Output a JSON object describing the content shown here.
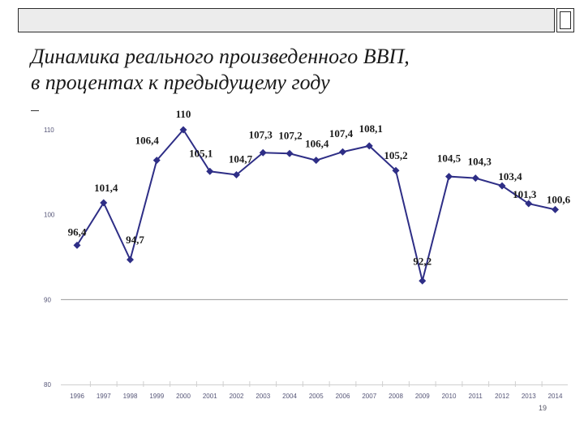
{
  "slide": {
    "title_line1": "Динамика реального произведенного ВВП,",
    "title_line2": "в процентах к предыдущему году",
    "page_number": "19"
  },
  "colors": {
    "series": "#2e2e86",
    "text": "#1a1a1a",
    "axis_tick": "#555577",
    "grid": "#9a9a9a"
  },
  "chart_data": {
    "type": "line",
    "title": "",
    "xlabel": "",
    "ylabel": "",
    "ylim": [
      80,
      110
    ],
    "yticks": [
      110,
      100,
      90,
      80
    ],
    "grid": "horizontal at 90",
    "x": [
      "1996",
      "1997",
      "1998",
      "1999",
      "2000",
      "2001",
      "2002",
      "2003",
      "2004",
      "2005",
      "2006",
      "2007",
      "2008",
      "2009",
      "2010",
      "2011",
      "2012",
      "2013",
      "2014"
    ],
    "series": [
      {
        "values": [
          96.4,
          101.4,
          94.7,
          106.4,
          110,
          105.1,
          104.7,
          107.3,
          107.2,
          106.4,
          107.4,
          108.1,
          105.2,
          92.2,
          104.5,
          104.3,
          103.4,
          101.3,
          100.6
        ],
        "labels": [
          "96,4",
          "101,4",
          "94,7",
          "106,4",
          "110",
          "105,1",
          "104,7",
          "107,3",
          "107,2",
          "106,4",
          "107,4",
          "108,1",
          "105,2",
          "92,2",
          "104,5",
          "104,3",
          "103,4",
          "101,3",
          "100,6"
        ]
      }
    ]
  }
}
